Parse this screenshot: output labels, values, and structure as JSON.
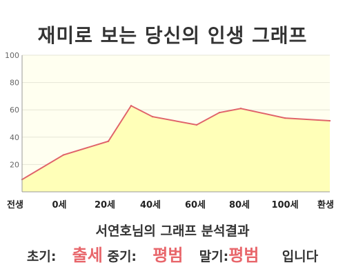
{
  "title": "재미로 보는 당신의 인생 그래프",
  "colors": {
    "line": "#e0636a",
    "fill": "#ffffb8",
    "plot_bg": "#fffff0",
    "grid": "#e6e6d6",
    "axis": "#999999",
    "highlight": "#e8666b"
  },
  "chart_data": {
    "type": "area",
    "title": "",
    "xlabel": "",
    "ylabel": "",
    "ylim": [
      0,
      100
    ],
    "yticks": [
      20,
      40,
      60,
      80,
      100
    ],
    "x_tick_labels": [
      "전생",
      "0세",
      "20세",
      "40세",
      "60세",
      "80세",
      "100세",
      "환생"
    ],
    "grid": true,
    "series": [
      {
        "x": [
          "전생",
          "0세",
          "20세",
          "30세",
          "40세",
          "60세",
          "70세",
          "80세",
          "100세",
          "환생"
        ],
        "values": [
          9,
          27,
          37,
          63,
          55,
          49,
          58,
          61,
          54,
          52
        ]
      }
    ]
  },
  "result": {
    "heading": "서연호님의 그래프 분석결과",
    "early_label": "초기:",
    "early_value": "출세",
    "mid_label": "중기:",
    "mid_value": "평범",
    "late_label": "말기:",
    "late_value": "평범",
    "suffix": "입니다"
  }
}
